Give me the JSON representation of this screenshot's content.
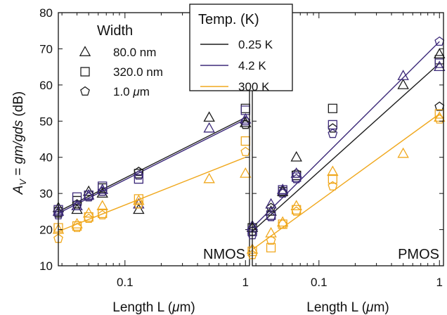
{
  "chart_data": {
    "type": "scatter",
    "ylabel_parts": [
      "A",
      "V",
      " = ",
      "gm/gds",
      " (dB)"
    ],
    "ylim": [
      10,
      80
    ],
    "yticks": [
      10,
      20,
      30,
      40,
      50,
      60,
      70,
      80
    ],
    "xscale": "log",
    "xlim": [
      0.028,
      1.08
    ],
    "xticks": [
      0.1,
      1
    ],
    "xticklabels": [
      "0.1",
      "1"
    ],
    "grid": false,
    "colors": {
      "0.25 K": "#1c1c1c",
      "4.2 K": "#3d2a7a",
      "300 K": "#f0a81e"
    },
    "width_legend": {
      "title": "Width",
      "entries": [
        {
          "marker": "triangle",
          "label": "80.0 nm"
        },
        {
          "marker": "square",
          "label": "320.0 nm"
        },
        {
          "marker": "pentagon",
          "label": "1.0 μm",
          "label_parts": [
            "1.0 ",
            "μ",
            "m"
          ]
        }
      ]
    },
    "temp_legend": {
      "title": "Temp.  (K)",
      "entries": [
        {
          "label": "0.25 K",
          "series": "0.25 K"
        },
        {
          "label": "4.2 K",
          "series": "4.2 K"
        },
        {
          "label": "300 K",
          "series": "300 K"
        }
      ]
    },
    "panels": [
      {
        "name": "NMOS",
        "xlabel_parts": [
          "Length L (",
          "μ",
          "m)"
        ],
        "fits": [
          {
            "series": "0.25 K",
            "x": [
              0.028,
              1.0
            ],
            "y": [
              25,
              51
            ]
          },
          {
            "series": "4.2 K",
            "x": [
              0.028,
              1.0
            ],
            "y": [
              24.5,
              50.5
            ]
          },
          {
            "series": "300 K",
            "x": [
              0.028,
              1.0
            ],
            "y": [
              19.5,
              40
            ]
          }
        ],
        "points": [
          {
            "series": "0.25 K",
            "marker": "triangle",
            "x": 0.028,
            "y": 26
          },
          {
            "series": "0.25 K",
            "marker": "triangle",
            "x": 0.04,
            "y": 25.5
          },
          {
            "series": "0.25 K",
            "marker": "triangle",
            "x": 0.05,
            "y": 30.5
          },
          {
            "series": "0.25 K",
            "marker": "triangle",
            "x": 0.065,
            "y": 30
          },
          {
            "series": "0.25 K",
            "marker": "triangle",
            "x": 0.13,
            "y": 25.5
          },
          {
            "series": "0.25 K",
            "marker": "triangle",
            "x": 0.5,
            "y": 51
          },
          {
            "series": "0.25 K",
            "marker": "triangle",
            "x": 1.0,
            "y": 49.5
          },
          {
            "series": "0.25 K",
            "marker": "square",
            "x": 0.028,
            "y": 25
          },
          {
            "series": "0.25 K",
            "marker": "square",
            "x": 0.04,
            "y": 28
          },
          {
            "series": "0.25 K",
            "marker": "square",
            "x": 0.05,
            "y": 29.5
          },
          {
            "series": "0.25 K",
            "marker": "square",
            "x": 0.065,
            "y": 31.5
          },
          {
            "series": "0.25 K",
            "marker": "square",
            "x": 0.13,
            "y": 35.5
          },
          {
            "series": "0.25 K",
            "marker": "square",
            "x": 1.0,
            "y": 53.5
          },
          {
            "series": "0.25 K",
            "marker": "pentagon",
            "x": 0.028,
            "y": 24.5
          },
          {
            "series": "0.25 K",
            "marker": "pentagon",
            "x": 0.04,
            "y": 27
          },
          {
            "series": "0.25 K",
            "marker": "pentagon",
            "x": 0.05,
            "y": 29
          },
          {
            "series": "0.25 K",
            "marker": "pentagon",
            "x": 0.065,
            "y": 30.5
          },
          {
            "series": "0.25 K",
            "marker": "pentagon",
            "x": 0.13,
            "y": 36
          },
          {
            "series": "0.25 K",
            "marker": "pentagon",
            "x": 1.0,
            "y": 49
          },
          {
            "series": "4.2 K",
            "marker": "triangle",
            "x": 0.028,
            "y": 25
          },
          {
            "series": "4.2 K",
            "marker": "triangle",
            "x": 0.04,
            "y": 26.5
          },
          {
            "series": "4.2 K",
            "marker": "triangle",
            "x": 0.05,
            "y": 29.5
          },
          {
            "series": "4.2 K",
            "marker": "triangle",
            "x": 0.065,
            "y": 31
          },
          {
            "series": "4.2 K",
            "marker": "triangle",
            "x": 0.13,
            "y": 27
          },
          {
            "series": "4.2 K",
            "marker": "triangle",
            "x": 0.5,
            "y": 48
          },
          {
            "series": "4.2 K",
            "marker": "triangle",
            "x": 1.0,
            "y": 50.5
          },
          {
            "series": "4.2 K",
            "marker": "square",
            "x": 0.028,
            "y": 25.5
          },
          {
            "series": "4.2 K",
            "marker": "square",
            "x": 0.04,
            "y": 29
          },
          {
            "series": "4.2 K",
            "marker": "square",
            "x": 0.05,
            "y": 29.5
          },
          {
            "series": "4.2 K",
            "marker": "square",
            "x": 0.065,
            "y": 32
          },
          {
            "series": "4.2 K",
            "marker": "square",
            "x": 0.13,
            "y": 34
          },
          {
            "series": "4.2 K",
            "marker": "square",
            "x": 1.0,
            "y": 53
          },
          {
            "series": "4.2 K",
            "marker": "pentagon",
            "x": 0.028,
            "y": 24
          },
          {
            "series": "4.2 K",
            "marker": "pentagon",
            "x": 0.04,
            "y": 26.5
          },
          {
            "series": "4.2 K",
            "marker": "pentagon",
            "x": 0.05,
            "y": 29
          },
          {
            "series": "4.2 K",
            "marker": "pentagon",
            "x": 0.065,
            "y": 30.5
          },
          {
            "series": "4.2 K",
            "marker": "pentagon",
            "x": 0.13,
            "y": 35
          },
          {
            "series": "4.2 K",
            "marker": "pentagon",
            "x": 1.0,
            "y": 50
          },
          {
            "series": "300 K",
            "marker": "triangle",
            "x": 0.028,
            "y": 20
          },
          {
            "series": "300 K",
            "marker": "triangle",
            "x": 0.04,
            "y": 21.5
          },
          {
            "series": "300 K",
            "marker": "triangle",
            "x": 0.05,
            "y": 24.5
          },
          {
            "series": "300 K",
            "marker": "triangle",
            "x": 0.065,
            "y": 26.5
          },
          {
            "series": "300 K",
            "marker": "triangle",
            "x": 0.13,
            "y": 28
          },
          {
            "series": "300 K",
            "marker": "triangle",
            "x": 0.5,
            "y": 34
          },
          {
            "series": "300 K",
            "marker": "triangle",
            "x": 1.0,
            "y": 35.5
          },
          {
            "series": "300 K",
            "marker": "square",
            "x": 0.028,
            "y": 20.5
          },
          {
            "series": "300 K",
            "marker": "square",
            "x": 0.04,
            "y": 21
          },
          {
            "series": "300 K",
            "marker": "square",
            "x": 0.05,
            "y": 23.5
          },
          {
            "series": "300 K",
            "marker": "square",
            "x": 0.065,
            "y": 24.5
          },
          {
            "series": "300 K",
            "marker": "square",
            "x": 0.13,
            "y": 28.5
          },
          {
            "series": "300 K",
            "marker": "square",
            "x": 1.0,
            "y": 44.5
          },
          {
            "series": "300 K",
            "marker": "pentagon",
            "x": 0.028,
            "y": 17.5
          },
          {
            "series": "300 K",
            "marker": "pentagon",
            "x": 0.04,
            "y": 20.5
          },
          {
            "series": "300 K",
            "marker": "pentagon",
            "x": 0.05,
            "y": 23
          },
          {
            "series": "300 K",
            "marker": "pentagon",
            "x": 0.065,
            "y": 24
          },
          {
            "series": "300 K",
            "marker": "pentagon",
            "x": 0.13,
            "y": 27
          },
          {
            "series": "300 K",
            "marker": "pentagon",
            "x": 1.0,
            "y": 41.5
          }
        ]
      },
      {
        "name": "PMOS",
        "xlabel_parts": [
          "Length L (",
          "μ",
          "m)"
        ],
        "fits": [
          {
            "series": "0.25 K",
            "x": [
              0.028,
              1.0
            ],
            "y": [
              19.5,
              66
            ]
          },
          {
            "series": "4.2 K",
            "x": [
              0.028,
              1.0
            ],
            "y": [
              20.5,
              72
            ]
          },
          {
            "series": "300 K",
            "x": [
              0.028,
              1.0
            ],
            "y": [
              14.5,
              52
            ]
          }
        ],
        "points": [
          {
            "series": "0.25 K",
            "marker": "triangle",
            "x": 0.028,
            "y": 20.5
          },
          {
            "series": "0.25 K",
            "marker": "triangle",
            "x": 0.04,
            "y": 25
          },
          {
            "series": "0.25 K",
            "marker": "triangle",
            "x": 0.05,
            "y": 30.5
          },
          {
            "series": "0.25 K",
            "marker": "triangle",
            "x": 0.065,
            "y": 40
          },
          {
            "series": "0.25 K",
            "marker": "triangle",
            "x": 0.5,
            "y": 60
          },
          {
            "series": "0.25 K",
            "marker": "triangle",
            "x": 1.0,
            "y": 68.5
          },
          {
            "series": "0.25 K",
            "marker": "square",
            "x": 0.028,
            "y": 20.5
          },
          {
            "series": "0.25 K",
            "marker": "square",
            "x": 0.04,
            "y": 24
          },
          {
            "series": "0.25 K",
            "marker": "square",
            "x": 0.05,
            "y": 30.5
          },
          {
            "series": "0.25 K",
            "marker": "square",
            "x": 0.065,
            "y": 35
          },
          {
            "series": "0.25 K",
            "marker": "square",
            "x": 0.13,
            "y": 53.5
          },
          {
            "series": "0.25 K",
            "marker": "square",
            "x": 1.0,
            "y": 67
          },
          {
            "series": "0.25 K",
            "marker": "pentagon",
            "x": 0.028,
            "y": 19.5
          },
          {
            "series": "0.25 K",
            "marker": "pentagon",
            "x": 0.04,
            "y": 26
          },
          {
            "series": "0.25 K",
            "marker": "pentagon",
            "x": 0.05,
            "y": 30
          },
          {
            "series": "0.25 K",
            "marker": "pentagon",
            "x": 0.065,
            "y": 35.5
          },
          {
            "series": "0.25 K",
            "marker": "pentagon",
            "x": 0.13,
            "y": 48
          },
          {
            "series": "0.25 K",
            "marker": "pentagon",
            "x": 1.0,
            "y": 54
          },
          {
            "series": "4.2 K",
            "marker": "triangle",
            "x": 0.028,
            "y": 21
          },
          {
            "series": "4.2 K",
            "marker": "triangle",
            "x": 0.04,
            "y": 27
          },
          {
            "series": "4.2 K",
            "marker": "triangle",
            "x": 0.05,
            "y": 31
          },
          {
            "series": "4.2 K",
            "marker": "triangle",
            "x": 0.065,
            "y": 35.5
          },
          {
            "series": "4.2 K",
            "marker": "triangle",
            "x": 0.5,
            "y": 62.5
          },
          {
            "series": "4.2 K",
            "marker": "triangle",
            "x": 1.0,
            "y": 65
          },
          {
            "series": "4.2 K",
            "marker": "square",
            "x": 0.028,
            "y": 19.5
          },
          {
            "series": "4.2 K",
            "marker": "square",
            "x": 0.04,
            "y": 24
          },
          {
            "series": "4.2 K",
            "marker": "square",
            "x": 0.05,
            "y": 31
          },
          {
            "series": "4.2 K",
            "marker": "square",
            "x": 0.065,
            "y": 34.5
          },
          {
            "series": "4.2 K",
            "marker": "square",
            "x": 0.13,
            "y": 49
          },
          {
            "series": "4.2 K",
            "marker": "square",
            "x": 1.0,
            "y": 66
          },
          {
            "series": "4.2 K",
            "marker": "pentagon",
            "x": 0.028,
            "y": 18.5
          },
          {
            "series": "4.2 K",
            "marker": "pentagon",
            "x": 0.04,
            "y": 23.5
          },
          {
            "series": "4.2 K",
            "marker": "pentagon",
            "x": 0.05,
            "y": 30
          },
          {
            "series": "4.2 K",
            "marker": "pentagon",
            "x": 0.065,
            "y": 34
          },
          {
            "series": "4.2 K",
            "marker": "pentagon",
            "x": 0.13,
            "y": 46.5
          },
          {
            "series": "4.2 K",
            "marker": "pentagon",
            "x": 1.0,
            "y": 72
          },
          {
            "series": "300 K",
            "marker": "triangle",
            "x": 0.028,
            "y": 14.5
          },
          {
            "series": "300 K",
            "marker": "triangle",
            "x": 0.04,
            "y": 19
          },
          {
            "series": "300 K",
            "marker": "triangle",
            "x": 0.05,
            "y": 22
          },
          {
            "series": "300 K",
            "marker": "triangle",
            "x": 0.065,
            "y": 26.5
          },
          {
            "series": "300 K",
            "marker": "triangle",
            "x": 0.13,
            "y": 36
          },
          {
            "series": "300 K",
            "marker": "triangle",
            "x": 0.5,
            "y": 41
          },
          {
            "series": "300 K",
            "marker": "triangle",
            "x": 1.0,
            "y": 51
          },
          {
            "series": "300 K",
            "marker": "square",
            "x": 0.028,
            "y": 14
          },
          {
            "series": "300 K",
            "marker": "square",
            "x": 0.04,
            "y": 15
          },
          {
            "series": "300 K",
            "marker": "square",
            "x": 0.05,
            "y": 21.5
          },
          {
            "series": "300 K",
            "marker": "square",
            "x": 0.065,
            "y": 25.5
          },
          {
            "series": "300 K",
            "marker": "square",
            "x": 0.13,
            "y": 34
          },
          {
            "series": "300 K",
            "marker": "square",
            "x": 1.0,
            "y": 52
          },
          {
            "series": "300 K",
            "marker": "pentagon",
            "x": 0.028,
            "y": 13
          },
          {
            "series": "300 K",
            "marker": "pentagon",
            "x": 0.04,
            "y": 17
          },
          {
            "series": "300 K",
            "marker": "pentagon",
            "x": 0.05,
            "y": 21.5
          },
          {
            "series": "300 K",
            "marker": "pentagon",
            "x": 0.065,
            "y": 25
          },
          {
            "series": "300 K",
            "marker": "pentagon",
            "x": 0.13,
            "y": 32
          },
          {
            "series": "300 K",
            "marker": "pentagon",
            "x": 1.0,
            "y": 50.5
          }
        ]
      }
    ]
  }
}
